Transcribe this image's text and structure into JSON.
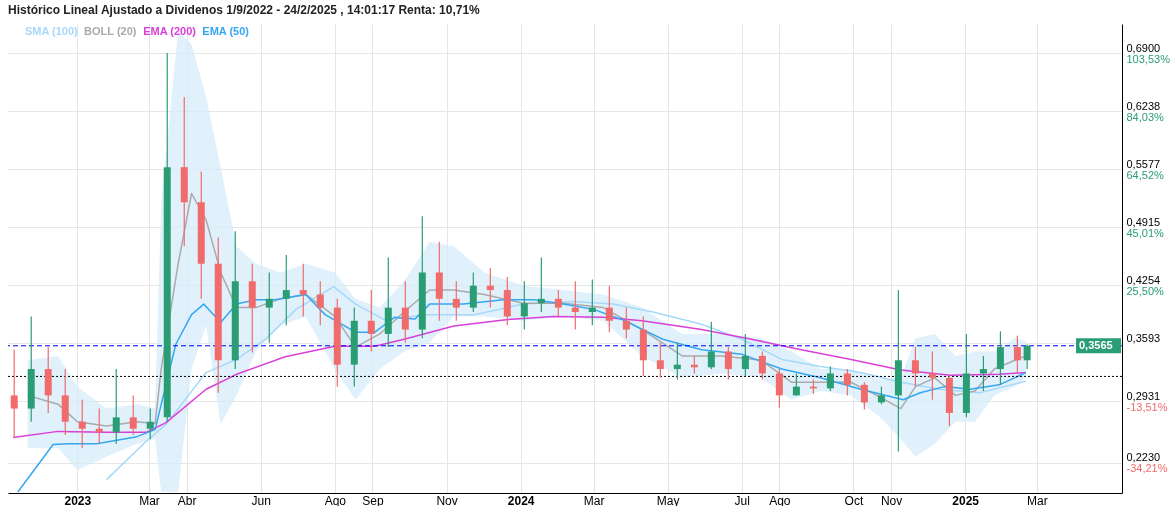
{
  "chart_data": {
    "type": "candlestick",
    "title": "Histórico Lineal Ajustado a Dividenos 1/9/2022 - 24/2/2025 , 14:01:17 Renta: 10,71%",
    "x": [
      "2022-11-10",
      "2022-11-24",
      "2022-12-08",
      "2022-12-22",
      "2023-01-05",
      "2023-01-19",
      "2023-02-02",
      "2023-02-16",
      "2023-03-02",
      "2023-03-16",
      "2023-03-30",
      "2023-04-13",
      "2023-04-27",
      "2023-05-11",
      "2023-05-25",
      "2023-06-08",
      "2023-06-22",
      "2023-07-06",
      "2023-07-20",
      "2023-08-03",
      "2023-08-17",
      "2023-08-31",
      "2023-09-14",
      "2023-09-28",
      "2023-10-12",
      "2023-10-26",
      "2023-11-09",
      "2023-11-23",
      "2023-12-07",
      "2023-12-21",
      "2024-01-04",
      "2024-01-18",
      "2024-02-01",
      "2024-02-15",
      "2024-02-29",
      "2024-03-14",
      "2024-03-28",
      "2024-04-11",
      "2024-04-25",
      "2024-05-09",
      "2024-05-23",
      "2024-06-06",
      "2024-06-20",
      "2024-07-04",
      "2024-07-18",
      "2024-08-01",
      "2024-08-15",
      "2024-08-29",
      "2024-09-12",
      "2024-09-26",
      "2024-10-10",
      "2024-10-24",
      "2024-11-07",
      "2024-11-21",
      "2024-12-05",
      "2024-12-19",
      "2025-01-02",
      "2025-01-16",
      "2025-01-30",
      "2025-02-13",
      "2025-02-21"
    ],
    "ohlc": [
      [
        0.3,
        0.352,
        0.252,
        0.285
      ],
      [
        0.285,
        0.39,
        0.27,
        0.33
      ],
      [
        0.33,
        0.355,
        0.28,
        0.3
      ],
      [
        0.3,
        0.33,
        0.255,
        0.27
      ],
      [
        0.27,
        0.295,
        0.24,
        0.262
      ],
      [
        0.262,
        0.285,
        0.245,
        0.258
      ],
      [
        0.258,
        0.33,
        0.245,
        0.275
      ],
      [
        0.275,
        0.3,
        0.255,
        0.262
      ],
      [
        0.262,
        0.285,
        0.25,
        0.27
      ],
      [
        0.275,
        0.69,
        0.27,
        0.56
      ],
      [
        0.56,
        0.64,
        0.47,
        0.52
      ],
      [
        0.52,
        0.555,
        0.41,
        0.45
      ],
      [
        0.45,
        0.48,
        0.303,
        0.34
      ],
      [
        0.34,
        0.487,
        0.33,
        0.43
      ],
      [
        0.43,
        0.45,
        0.349,
        0.4
      ],
      [
        0.4,
        0.44,
        0.36,
        0.41
      ],
      [
        0.41,
        0.46,
        0.38,
        0.42
      ],
      [
        0.42,
        0.45,
        0.39,
        0.415
      ],
      [
        0.415,
        0.43,
        0.38,
        0.4
      ],
      [
        0.4,
        0.41,
        0.31,
        0.335
      ],
      [
        0.335,
        0.4,
        0.31,
        0.385
      ],
      [
        0.385,
        0.42,
        0.35,
        0.37
      ],
      [
        0.37,
        0.457,
        0.355,
        0.4
      ],
      [
        0.4,
        0.43,
        0.36,
        0.375
      ],
      [
        0.375,
        0.504,
        0.365,
        0.44
      ],
      [
        0.44,
        0.475,
        0.385,
        0.41
      ],
      [
        0.41,
        0.43,
        0.385,
        0.4
      ],
      [
        0.4,
        0.44,
        0.395,
        0.425
      ],
      [
        0.425,
        0.445,
        0.4,
        0.42
      ],
      [
        0.42,
        0.435,
        0.38,
        0.39
      ],
      [
        0.39,
        0.43,
        0.375,
        0.405
      ],
      [
        0.405,
        0.457,
        0.395,
        0.41
      ],
      [
        0.41,
        0.42,
        0.39,
        0.4
      ],
      [
        0.4,
        0.43,
        0.375,
        0.395
      ],
      [
        0.395,
        0.432,
        0.38,
        0.4
      ],
      [
        0.4,
        0.425,
        0.372,
        0.385
      ],
      [
        0.385,
        0.4,
        0.365,
        0.375
      ],
      [
        0.375,
        0.39,
        0.322,
        0.34
      ],
      [
        0.34,
        0.36,
        0.32,
        0.33
      ],
      [
        0.33,
        0.36,
        0.318,
        0.335
      ],
      [
        0.335,
        0.345,
        0.325,
        0.332
      ],
      [
        0.332,
        0.384,
        0.33,
        0.35
      ],
      [
        0.35,
        0.355,
        0.318,
        0.33
      ],
      [
        0.33,
        0.37,
        0.322,
        0.345
      ],
      [
        0.345,
        0.35,
        0.318,
        0.325
      ],
      [
        0.325,
        0.33,
        0.286,
        0.3
      ],
      [
        0.3,
        0.325,
        0.3,
        0.31
      ],
      [
        0.31,
        0.318,
        0.302,
        0.308
      ],
      [
        0.308,
        0.333,
        0.305,
        0.325
      ],
      [
        0.325,
        0.33,
        0.3,
        0.312
      ],
      [
        0.312,
        0.315,
        0.284,
        0.292
      ],
      [
        0.292,
        0.31,
        0.29,
        0.3
      ],
      [
        0.3,
        0.42,
        0.236,
        0.34
      ],
      [
        0.34,
        0.355,
        0.31,
        0.325
      ],
      [
        0.325,
        0.35,
        0.295,
        0.32
      ],
      [
        0.32,
        0.322,
        0.265,
        0.28
      ],
      [
        0.28,
        0.37,
        0.275,
        0.325
      ],
      [
        0.325,
        0.345,
        0.305,
        0.33
      ],
      [
        0.33,
        0.373,
        0.312,
        0.355
      ],
      [
        0.355,
        0.368,
        0.325,
        0.34
      ],
      [
        0.34,
        0.358,
        0.33,
        0.3565
      ]
    ],
    "series": [
      {
        "name": "SMA (100)",
        "type": "line",
        "color": "#a6d8fa",
        "x": [
          "2023-01-25",
          "2023-02-27",
          "2023-03-15",
          "2023-04-17",
          "2023-05-12",
          "2023-06-05",
          "2023-06-30",
          "2023-07-31",
          "2023-08-18",
          "2023-09-11",
          "2023-10-14",
          "2023-11-24",
          "2024-01-03",
          "2024-02-13",
          "2024-03-17",
          "2024-04-19",
          "2024-05-29",
          "2024-07-01",
          "2024-08-03",
          "2024-09-04",
          "2024-10-07",
          "2024-11-09",
          "2024-12-11",
          "2025-01-13",
          "2025-02-20"
        ],
        "values": [
          0.204,
          0.248,
          0.267,
          0.326,
          0.341,
          0.364,
          0.398,
          0.424,
          0.404,
          0.386,
          0.392,
          0.392,
          0.404,
          0.407,
          0.404,
          0.395,
          0.381,
          0.364,
          0.341,
          0.333,
          0.326,
          0.315,
          0.307,
          0.303,
          0.316
        ]
      },
      {
        "name": "BOLL (20)",
        "type": "line",
        "color": "#aaaaaa",
        "x": [
          "2022-11-21",
          "2022-12-16",
          "2023-01-01",
          "2023-01-25",
          "2023-02-19",
          "2023-03-06",
          "2023-03-11",
          "2023-03-25",
          "2023-04-05",
          "2023-04-17",
          "2023-04-29",
          "2023-05-12",
          "2023-05-28",
          "2023-06-17",
          "2023-07-08",
          "2023-08-01",
          "2023-08-18",
          "2023-09-07",
          "2023-09-27",
          "2023-10-18",
          "2023-11-07",
          "2023-12-02",
          "2024-01-03",
          "2024-02-05",
          "2024-03-09",
          "2024-04-10",
          "2024-05-13",
          "2024-06-15",
          "2024-07-17",
          "2024-08-11",
          "2024-09-04",
          "2024-09-29",
          "2024-10-23",
          "2024-11-09",
          "2024-11-21",
          "2024-12-07",
          "2024-12-24",
          "2025-01-09",
          "2025-01-25",
          "2025-02-11",
          "2025-02-20"
        ],
        "values": [
          0.3,
          0.29,
          0.27,
          0.265,
          0.27,
          0.268,
          0.33,
          0.45,
          0.53,
          0.5,
          0.44,
          0.4,
          0.4,
          0.41,
          0.415,
          0.39,
          0.355,
          0.37,
          0.395,
          0.42,
          0.42,
          0.415,
          0.405,
          0.405,
          0.4,
          0.375,
          0.345,
          0.345,
          0.34,
          0.315,
          0.315,
          0.315,
          0.298,
          0.285,
          0.31,
          0.32,
          0.3,
          0.305,
          0.33,
          0.34,
          0.345
        ],
        "lower": [
          0.24,
          0.24,
          0.215,
          0.23,
          0.245,
          0.25,
          0.19,
          0.19,
          0.33,
          0.38,
          0.267,
          0.3,
          0.35,
          0.38,
          0.39,
          0.33,
          0.295,
          0.33,
          0.35,
          0.36,
          0.39,
          0.39,
          0.385,
          0.39,
          0.385,
          0.345,
          0.32,
          0.325,
          0.32,
          0.295,
          0.305,
          0.3,
          0.275,
          0.25,
          0.23,
          0.245,
          0.27,
          0.27,
          0.3,
          0.31,
          0.32
        ],
        "upper": [
          0.34,
          0.345,
          0.31,
          0.285,
          0.29,
          0.285,
          0.52,
          0.715,
          0.7,
          0.64,
          0.56,
          0.47,
          0.45,
          0.44,
          0.45,
          0.44,
          0.41,
          0.4,
          0.43,
          0.475,
          0.47,
          0.44,
          0.425,
          0.42,
          0.415,
          0.4,
          0.37,
          0.37,
          0.365,
          0.35,
          0.33,
          0.33,
          0.318,
          0.32,
          0.365,
          0.37,
          0.345,
          0.35,
          0.35,
          0.365,
          0.362
        ]
      },
      {
        "name": "EMA (200)",
        "type": "line",
        "color": "#d93fd9",
        "x": [
          "2022-11-09",
          "2022-12-16",
          "2023-01-25",
          "2023-02-27",
          "2023-03-15",
          "2023-04-17",
          "2023-05-12",
          "2023-06-21",
          "2023-08-01",
          "2023-09-03",
          "2023-09-27",
          "2023-11-07",
          "2023-12-18",
          "2024-01-28",
          "2024-03-09",
          "2024-04-10",
          "2024-05-29",
          "2024-07-09",
          "2024-08-19",
          "2024-09-29",
          "2024-11-09",
          "2024-12-20",
          "2025-01-29",
          "2025-02-20"
        ],
        "values": [
          0.252,
          0.259,
          0.258,
          0.258,
          0.269,
          0.307,
          0.324,
          0.344,
          0.356,
          0.356,
          0.364,
          0.379,
          0.386,
          0.39,
          0.389,
          0.385,
          0.375,
          0.364,
          0.352,
          0.341,
          0.329,
          0.323,
          0.324,
          0.326
        ]
      },
      {
        "name": "EMA (50)",
        "type": "line",
        "color": "#34a7f2",
        "x": [
          "2022-11-13",
          "2022-12-12",
          "2022-12-24",
          "2023-01-17",
          "2023-02-19",
          "2023-03-06",
          "2023-03-23",
          "2023-04-05",
          "2023-04-15",
          "2023-04-29",
          "2023-05-12",
          "2023-05-28",
          "2023-06-13",
          "2023-07-08",
          "2023-07-24",
          "2023-08-18",
          "2023-09-03",
          "2023-09-19",
          "2023-10-06",
          "2023-10-18",
          "2023-11-15",
          "2023-12-18",
          "2024-01-12",
          "2024-02-05",
          "2024-03-01",
          "2024-03-25",
          "2024-04-27",
          "2024-05-29",
          "2024-07-01",
          "2024-08-03",
          "2024-09-04",
          "2024-10-07",
          "2024-11-11",
          "2024-11-25",
          "2024-12-15",
          "2025-01-05",
          "2025-01-29",
          "2025-02-20"
        ],
        "values": [
          0.19,
          0.244,
          0.245,
          0.245,
          0.253,
          0.261,
          0.358,
          0.392,
          0.404,
          0.383,
          0.404,
          0.409,
          0.409,
          0.415,
          0.392,
          0.372,
          0.372,
          0.389,
          0.387,
          0.404,
          0.404,
          0.409,
          0.409,
          0.404,
          0.398,
          0.386,
          0.364,
          0.352,
          0.347,
          0.33,
          0.32,
          0.307,
          0.295,
          0.303,
          0.31,
          0.307,
          0.312,
          0.326
        ]
      }
    ],
    "xlim": [
      "2022-11-09",
      "2025-05-06"
    ],
    "xticks": [
      {
        "value": "2023-01-01",
        "label": "2023"
      },
      {
        "value": "2023-03-01",
        "label": "Mar"
      },
      {
        "value": "2023-04-01",
        "label": "Abr"
      },
      {
        "value": "2023-06-01",
        "label": "Jun"
      },
      {
        "value": "2023-08-01",
        "label": "Ago"
      },
      {
        "value": "2023-09-01",
        "label": "Sep"
      },
      {
        "value": "2023-11-01",
        "label": "Nov"
      },
      {
        "value": "2024-01-01",
        "label": "2024"
      },
      {
        "value": "2024-03-01",
        "label": "Mar"
      },
      {
        "value": "2024-05-01",
        "label": "May"
      },
      {
        "value": "2024-07-01",
        "label": "Jul"
      },
      {
        "value": "2024-08-01",
        "label": "Ago"
      },
      {
        "value": "2024-10-01",
        "label": "Oct"
      },
      {
        "value": "2024-11-01",
        "label": "Nov"
      },
      {
        "value": "2025-01-01",
        "label": "2025"
      },
      {
        "value": "2025-03-01",
        "label": "Mar"
      }
    ],
    "ylim": [
      0.1888,
      0.7231
    ],
    "yticks": [
      {
        "value": 0.223,
        "label": "0,2230"
      },
      {
        "value": 0.2931,
        "label": "0,2931"
      },
      {
        "value": 0.3593,
        "label": "0,3593"
      },
      {
        "value": 0.4254,
        "label": "0,4254"
      },
      {
        "value": 0.4915,
        "label": "0,4915"
      },
      {
        "value": 0.5577,
        "label": "0,5577"
      },
      {
        "value": 0.6238,
        "label": "0,6238"
      },
      {
        "value": 0.69,
        "label": "0,6900"
      }
    ],
    "y2lim": [
      -44.31,
      113.29
    ],
    "y2ticks": [
      {
        "value": -34.21,
        "label": "-34,21%"
      },
      {
        "value": -13.51,
        "label": "-13,51%"
      },
      {
        "value": 25.5,
        "label": "25,50%"
      },
      {
        "value": 45.01,
        "label": "45,01%"
      },
      {
        "value": 64.52,
        "label": "64,52%"
      },
      {
        "value": 84.03,
        "label": "84,03%"
      },
      {
        "value": 103.53,
        "label": "103,53%"
      }
    ],
    "ref_lines": [
      {
        "axis": "y",
        "value": 0.3565,
        "label": "0,3565",
        "color": "#0000ee",
        "line_style": "dashed"
      },
      {
        "axis": "y",
        "value": 0.3216,
        "color": "#000000",
        "line_style": "dotted"
      }
    ],
    "grid": true,
    "legend": "top left"
  }
}
